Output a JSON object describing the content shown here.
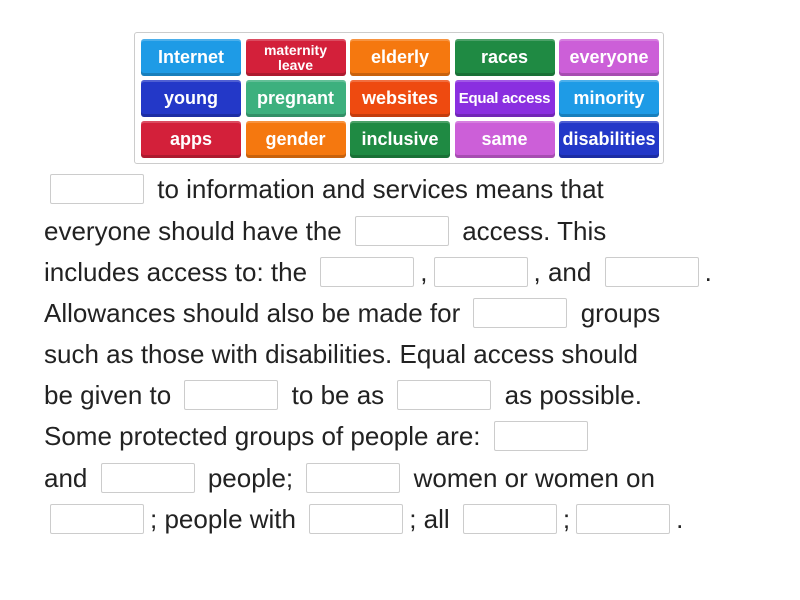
{
  "word_bank": [
    {
      "label": "Internet",
      "color": "#1e9be6"
    },
    {
      "label": "maternity leave",
      "color": "#d3203a",
      "size": "small"
    },
    {
      "label": "elderly",
      "color": "#f5780f"
    },
    {
      "label": "races",
      "color": "#1f8a43"
    },
    {
      "label": "everyone",
      "color": "#cc5fd8"
    },
    {
      "label": "young",
      "color": "#2338c8"
    },
    {
      "label": "pregnant",
      "color": "#3db07e"
    },
    {
      "label": "websites",
      "color": "#ee4a10"
    },
    {
      "label": "Equal access",
      "color": "#8a2fe0",
      "size": "tiny"
    },
    {
      "label": "minority",
      "color": "#1e9be6"
    },
    {
      "label": "apps",
      "color": "#d3203a"
    },
    {
      "label": "gender",
      "color": "#f5780f"
    },
    {
      "label": "inclusive",
      "color": "#1f8a43"
    },
    {
      "label": "same",
      "color": "#cc5fd8"
    },
    {
      "label": "disabilities",
      "color": "#2338c8"
    }
  ],
  "lines": [
    [
      "_",
      " to information and services means that"
    ],
    [
      "everyone should have the ",
      "_",
      " access. This"
    ],
    [
      "includes access to: the ",
      "_",
      ",",
      "_",
      ", and ",
      "_",
      "."
    ],
    [
      "Allowances should also be made for ",
      "_",
      " groups"
    ],
    [
      "such as those with disabilities. Equal access should"
    ],
    [
      "be given to ",
      "_",
      " to be as ",
      "_",
      " as possible."
    ],
    [
      "Some protected groups of people are: ",
      "_"
    ],
    [
      "and ",
      "_",
      " people; ",
      "_",
      " women or women on"
    ],
    [
      "_",
      "; people with ",
      "_",
      "; all ",
      "_",
      ";",
      "_",
      "."
    ]
  ]
}
